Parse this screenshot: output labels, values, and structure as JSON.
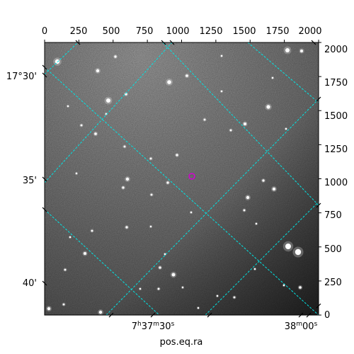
{
  "figure": {
    "bottom_axis_title": "pos.eq.ra",
    "top_ticks": [
      "0",
      "250",
      "500",
      "750",
      "1000",
      "1250",
      "1500",
      "1750",
      "2000"
    ],
    "right_ticks": [
      "0",
      "250",
      "500",
      "750",
      "1000",
      "1250",
      "1500",
      "1750",
      "2000"
    ],
    "left_ticks": [
      "17°30'",
      "35'",
      "40'"
    ],
    "bottom_ticks": [
      {
        "h": "7",
        "hs": "h",
        "m": "37",
        "ms": "m",
        "s": "30",
        "ss": "s"
      },
      {
        "h": "",
        "hs": "",
        "m": "38",
        "ms": "m",
        "s": "00",
        "ss": "s"
      }
    ],
    "grid_color": "#00e5e5",
    "marker_color": "#d400d4"
  },
  "chart_data": {
    "type": "image",
    "pixel_axes": {
      "x": [
        0,
        2000
      ],
      "y": [
        0,
        2000
      ]
    },
    "top_tick_values": [
      0,
      250,
      500,
      750,
      1000,
      1250,
      1500,
      1750,
      2000
    ],
    "right_tick_values": [
      0,
      250,
      500,
      750,
      1000,
      1250,
      1500,
      1750,
      2000
    ],
    "dec_ticks": [
      "17°30'",
      "35'",
      "40'"
    ],
    "ra_ticks": [
      "7h37m30s",
      "38m00s"
    ],
    "xlabel": "pos.eq.ra",
    "grid": true,
    "source_marker": {
      "x": 1100,
      "y": 1030
    }
  }
}
